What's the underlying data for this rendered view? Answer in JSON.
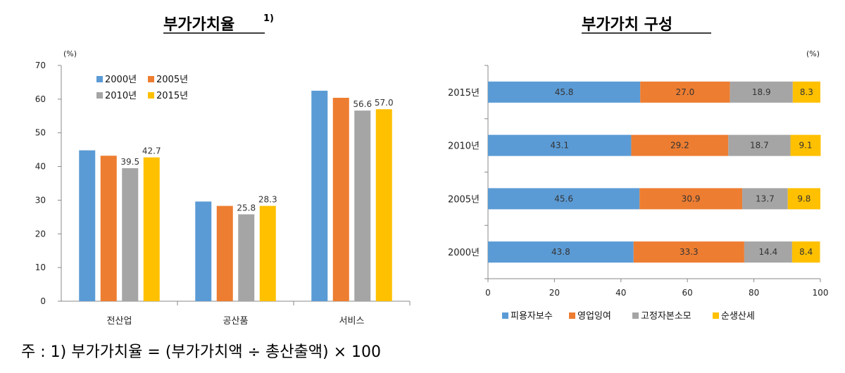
{
  "colors": {
    "2000": "#5b9bd5",
    "2005": "#ed7d31",
    "2010": "#a5a5a5",
    "2015": "#ffc000"
  },
  "chart_data": [
    {
      "type": "bar",
      "title": "부가가치율",
      "title_sup": "1)",
      "unit": "(%)",
      "ylim": [
        0,
        70
      ],
      "yticks": [
        "0",
        "10",
        "20",
        "30",
        "40",
        "50",
        "60",
        "70"
      ],
      "categories": [
        "전산업",
        "공산품",
        "서비스"
      ],
      "legend_position": "top-left",
      "series": [
        {
          "name": "2000년",
          "values": [
            44.8,
            29.6,
            62.5
          ],
          "labels": [
            "",
            "",
            ""
          ]
        },
        {
          "name": "2005년",
          "values": [
            43.2,
            28.3,
            60.4
          ],
          "labels": [
            "",
            "",
            ""
          ]
        },
        {
          "name": "2010년",
          "values": [
            39.5,
            25.8,
            56.6
          ],
          "labels": [
            "39.5",
            "25.8",
            "56.6"
          ]
        },
        {
          "name": "2015년",
          "values": [
            42.7,
            28.3,
            57.0
          ],
          "labels": [
            "42.7",
            "28.3",
            "57.0"
          ]
        }
      ]
    },
    {
      "type": "stacked_bar_horizontal",
      "title": "부가가치 구성",
      "unit": "(%)",
      "xlim": [
        0,
        100
      ],
      "xticks": [
        "0",
        "20",
        "40",
        "60",
        "80",
        "100"
      ],
      "categories": [
        "2015년",
        "2010년",
        "2005년",
        "2000년"
      ],
      "legend_position": "bottom",
      "series": [
        {
          "name": "피용자보수",
          "color": "#5b9bd5",
          "values": [
            45.8,
            43.1,
            45.6,
            43.8
          ],
          "labels": [
            "45.8",
            "43.1",
            "45.6",
            "43.8"
          ]
        },
        {
          "name": "영업잉여",
          "color": "#ed7d31",
          "values": [
            27.0,
            29.2,
            30.9,
            33.3
          ],
          "labels": [
            "27.0",
            "29.2",
            "30.9",
            "33.3"
          ]
        },
        {
          "name": "고정자본소모",
          "color": "#a5a5a5",
          "values": [
            18.9,
            18.7,
            13.7,
            14.4
          ],
          "labels": [
            "18.9",
            "18.7",
            "13.7",
            "14.4"
          ]
        },
        {
          "name": "순생산세",
          "color": "#ffc000",
          "values": [
            8.3,
            9.1,
            9.8,
            8.4
          ],
          "labels": [
            "8.3",
            "9.1",
            "9.8",
            "8.4"
          ]
        }
      ]
    }
  ],
  "footnote": "주 : 1) 부가가치율 = (부가가치액 ÷ 총산출액) × 100"
}
